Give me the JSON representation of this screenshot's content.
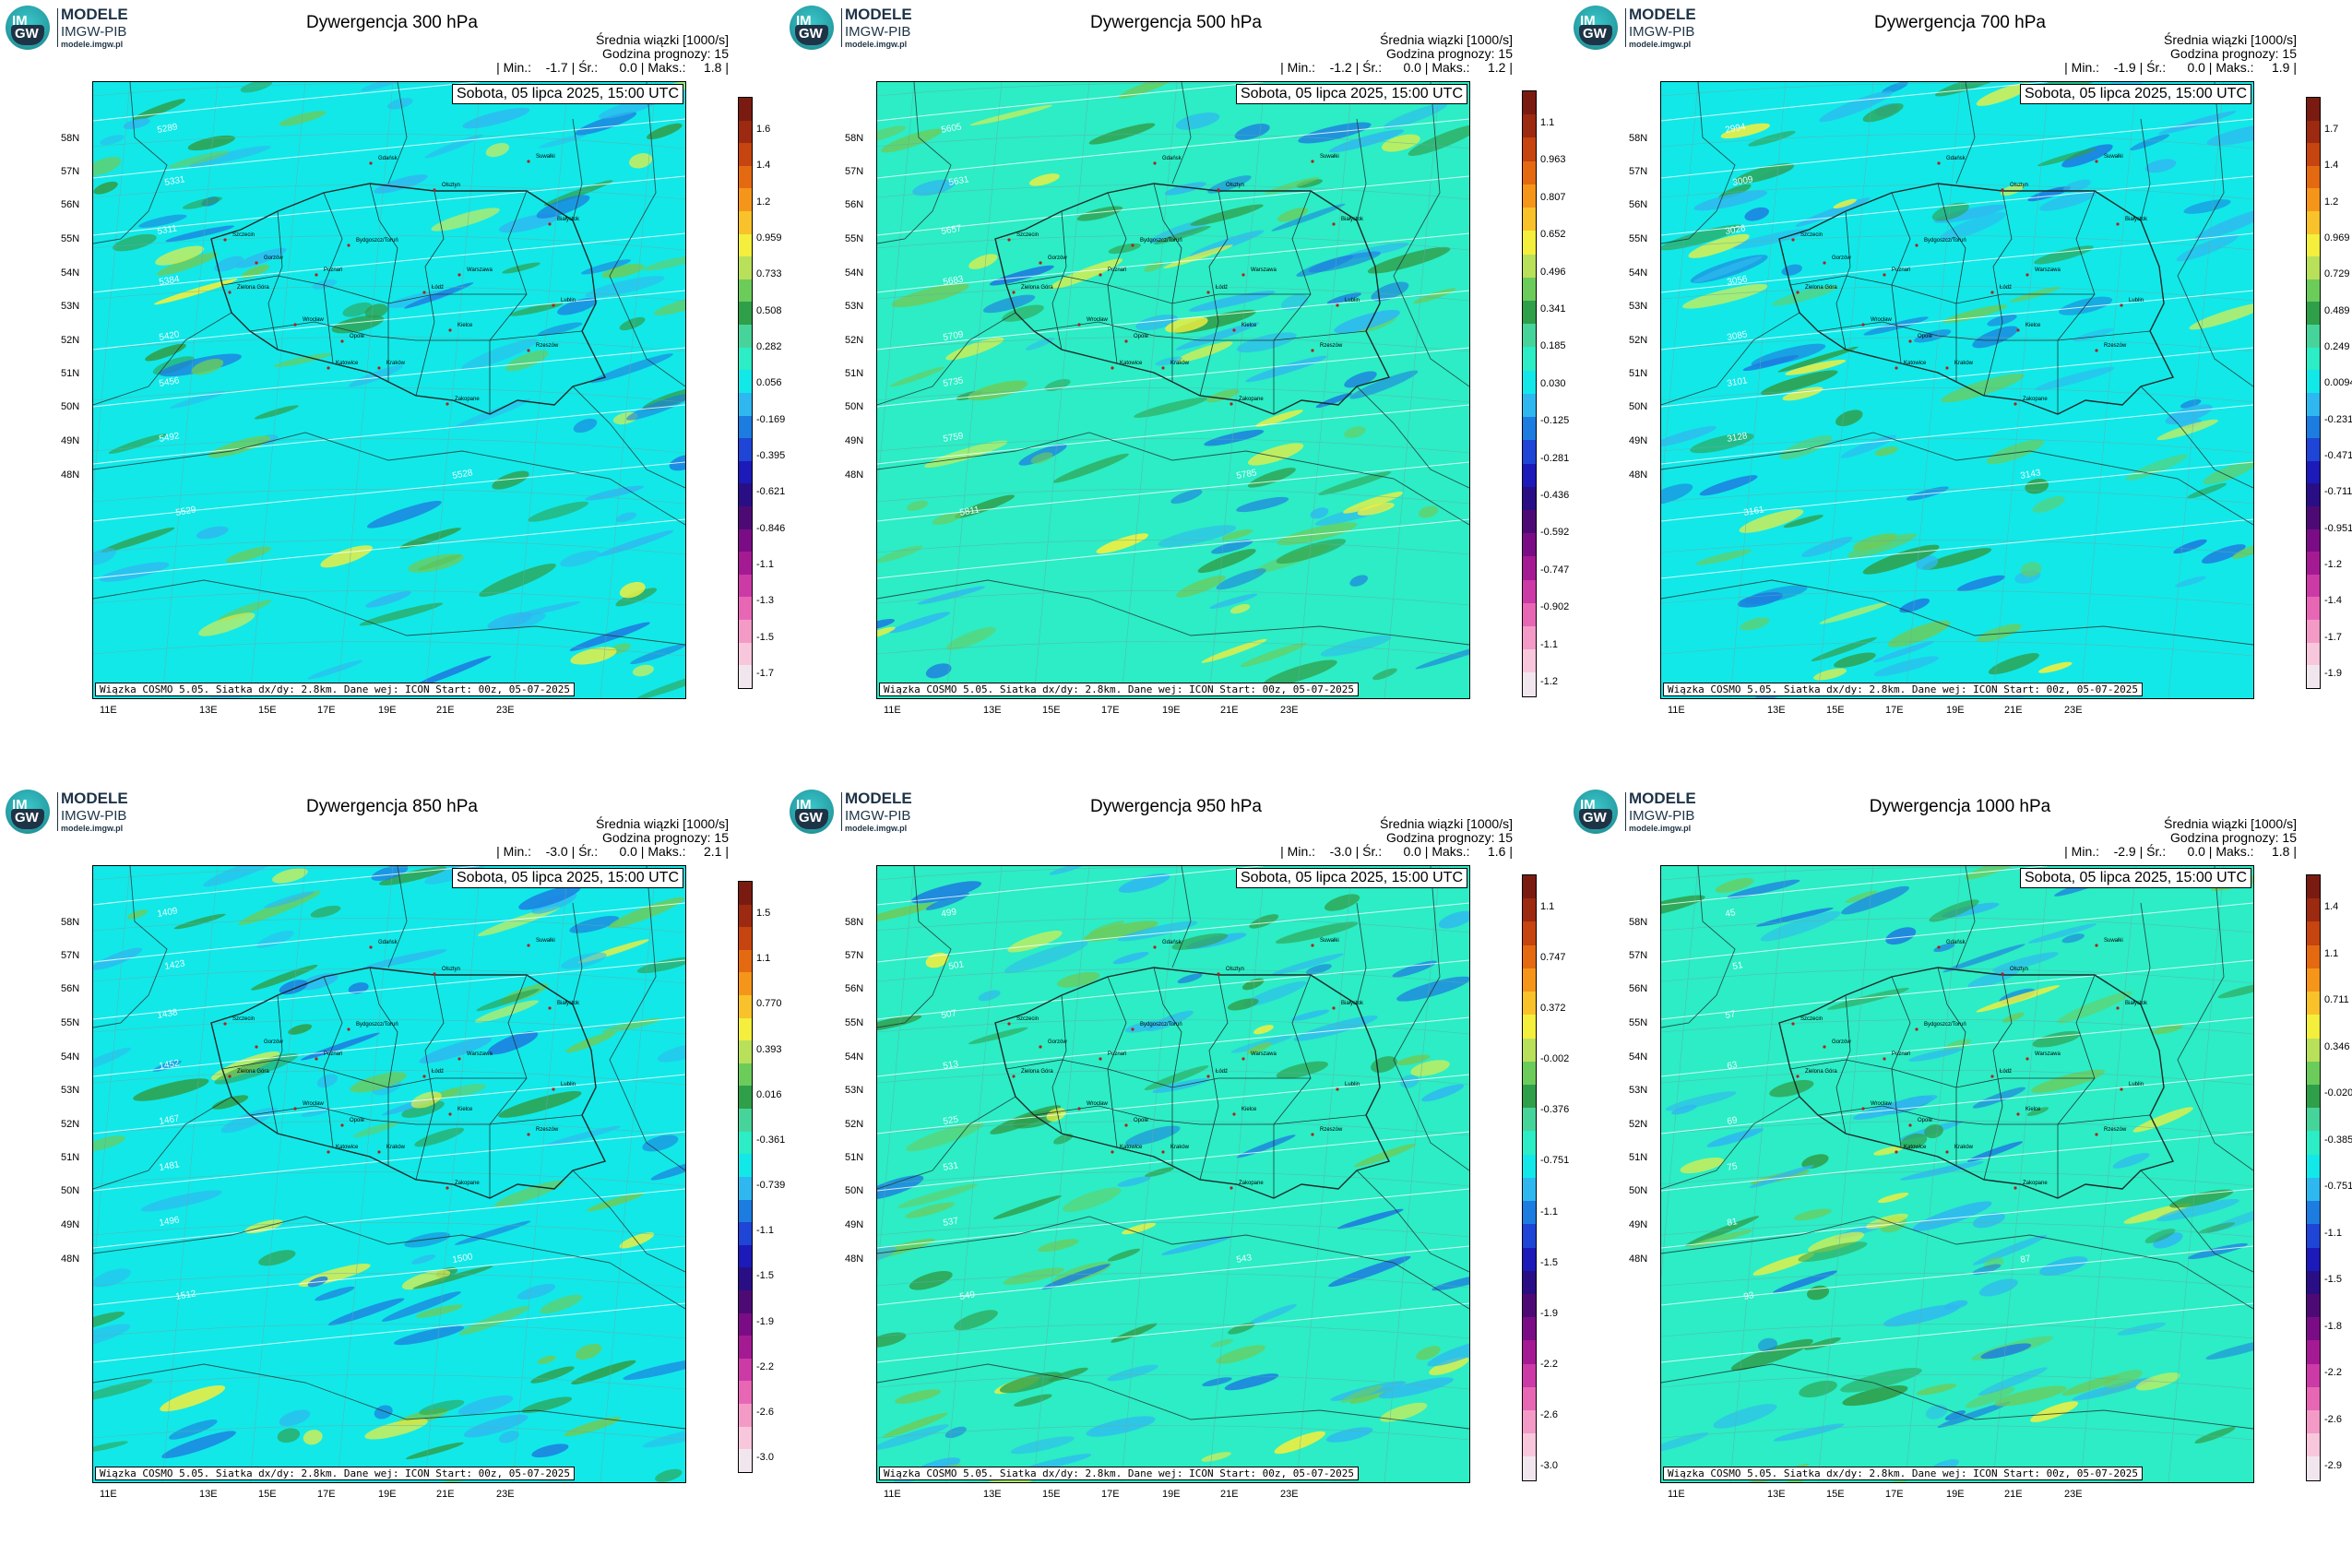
{
  "logo": {
    "line1": "MODELE",
    "line2": "IMGW-PIB",
    "line3": "modele.imgw.pl",
    "mark_top": "IM",
    "mark_bottom": "GW"
  },
  "common": {
    "units_label": "Średnia wiązki [1000/s]",
    "forecast_hour_label": "Godzina prognozy: 15",
    "date_label": "Sobota, 05 lipca 2025, 15:00 UTC",
    "footer_label": "Wiązka COSMO 5.05. Siatka dx/dy: 2.8km. Dane wej: ICON Start: 00z, 05-07-2025",
    "lat_labels": [
      "58N",
      "57N",
      "56N",
      "55N",
      "54N",
      "53N",
      "52N",
      "51N",
      "50N",
      "49N",
      "48N"
    ],
    "lon_labels": [
      "11E",
      "13E",
      "15E",
      "17E",
      "19E",
      "21E",
      "23E"
    ]
  },
  "cities": [
    "Gdańsk",
    "Olsztyn",
    "Suwałki",
    "Białystok",
    "Szczecin",
    "Bydgoszcz/Toruń",
    "Gorzów",
    "Poznań",
    "Warszawa",
    "Zielona Góra",
    "Łódź",
    "Lublin",
    "Wrocław",
    "Kielce",
    "Opole",
    "Katowice",
    "Kraków",
    "Rzeszów",
    "Zakopane"
  ],
  "panels": [
    {
      "title": "Dywergencja 300 hPa",
      "stats": "| Min.:    -1.7 | Śr.:      0.0 | Maks.:     1.8 |",
      "variant": "cyan",
      "ticks": [
        "1.6",
        "1.4",
        "1.2",
        "0.959",
        "0.733",
        "0.508",
        "0.282",
        "0.056",
        "-0.169",
        "-0.395",
        "-0.621",
        "-0.846",
        "-1.1",
        "-1.3",
        "-1.5",
        "-1.7"
      ],
      "contours": [
        "5289",
        "5331",
        "5311",
        "5384",
        "5420",
        "5456",
        "5492",
        "5528",
        "5529"
      ]
    },
    {
      "title": "Dywergencja 500 hPa",
      "stats": "| Min.:    -1.2 | Śr.:      0.0 | Maks.:     1.2 |",
      "variant": "green",
      "ticks": [
        "1.1",
        "0.963",
        "0.807",
        "0.652",
        "0.496",
        "0.341",
        "0.185",
        "0.030",
        "-0.125",
        "-0.281",
        "-0.436",
        "-0.592",
        "-0.747",
        "-0.902",
        "-1.1",
        "-1.2"
      ],
      "contours": [
        "5605",
        "5631",
        "5657",
        "5683",
        "5709",
        "5735",
        "5759",
        "5785",
        "5811"
      ]
    },
    {
      "title": "Dywergencja 700 hPa",
      "stats": "| Min.:    -1.9 | Śr.:      0.0 | Maks.:     1.9 |",
      "variant": "cyan",
      "ticks": [
        "1.7",
        "1.4",
        "1.2",
        "0.969",
        "0.729",
        "0.489",
        "0.249",
        "0.0094",
        "-0.231",
        "-0.471",
        "-0.711",
        "-0.951",
        "-1.2",
        "-1.4",
        "-1.7",
        "-1.9"
      ],
      "contours": [
        "2994",
        "3009",
        "3026",
        "3056",
        "3085",
        "3101",
        "3128",
        "3143",
        "3161"
      ]
    },
    {
      "title": "Dywergencja 850 hPa",
      "stats": "| Min.:    -3.0 | Śr.:      0.0 | Maks.:     2.1 |",
      "variant": "cyan",
      "ticks": [
        "1.5",
        "1.1",
        "0.770",
        "0.393",
        "0.016",
        "-0.361",
        "-0.739",
        "-1.1",
        "-1.5",
        "-1.9",
        "-2.2",
        "-2.6",
        "-3.0"
      ],
      "contours": [
        "1409",
        "1423",
        "1438",
        "1452",
        "1467",
        "1481",
        "1496",
        "1500",
        "1512"
      ]
    },
    {
      "title": "Dywergencja 950 hPa",
      "stats": "| Min.:    -3.0 | Śr.:      0.0 | Maks.:     1.6 |",
      "variant": "green",
      "ticks": [
        "1.1",
        "0.747",
        "0.372",
        "-0.002",
        "-0.376",
        "-0.751",
        "-1.1",
        "-1.5",
        "-1.9",
        "-2.2",
        "-2.6",
        "-3.0"
      ],
      "contours": [
        "499",
        "501",
        "507",
        "513",
        "525",
        "531",
        "537",
        "543",
        "549"
      ]
    },
    {
      "title": "Dywergencja 1000 hPa",
      "stats": "| Min.:    -2.9 | Śr.:      0.0 | Maks.:     1.8 |",
      "variant": "green",
      "ticks": [
        "1.4",
        "1.1",
        "0.711",
        "0.346",
        "-0.020",
        "-0.385",
        "-0.751",
        "-1.1",
        "-1.5",
        "-1.8",
        "-2.2",
        "-2.6",
        "-2.9"
      ],
      "contours": [
        "45",
        "51",
        "57",
        "63",
        "69",
        "75",
        "81",
        "87",
        "93"
      ]
    }
  ]
}
